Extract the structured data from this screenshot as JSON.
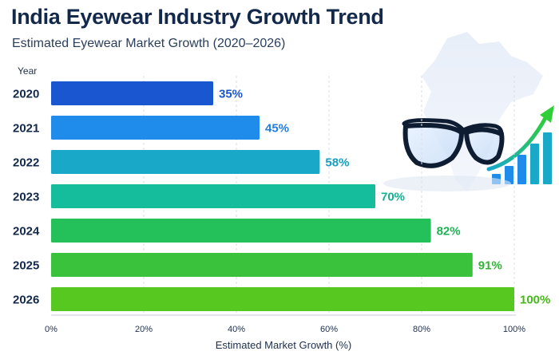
{
  "chart_data": {
    "type": "bar",
    "orientation": "horizontal",
    "title": "India Eyewear Industry Growth Trend",
    "subtitle": "Estimated Eyewear Market Growth (2020–2026)",
    "ylabel": "Year",
    "xlabel": "Estimated Market Growth (%)",
    "categories": [
      "2020",
      "2021",
      "2022",
      "2023",
      "2024",
      "2025",
      "2026"
    ],
    "values": [
      35,
      45,
      58,
      70,
      82,
      91,
      100
    ],
    "data_labels": [
      "35%",
      "45%",
      "58%",
      "70%",
      "82%",
      "91%",
      "100%"
    ],
    "xlim": [
      0,
      100
    ],
    "xticks": [
      0,
      20,
      40,
      60,
      80,
      100
    ],
    "xtick_labels": [
      "0%",
      "20%",
      "40%",
      "60%",
      "80%",
      "100%"
    ],
    "grid": "vertical dashed",
    "colors": [
      "#1a56cf",
      "#1f8bea",
      "#1aa8c8",
      "#16bd9c",
      "#24c15a",
      "#3bc23d",
      "#56c81f"
    ],
    "label_colors": [
      "#1a56cf",
      "#1f7fe0",
      "#179fbf",
      "#14b08f",
      "#1fb153",
      "#32b337",
      "#46b81a"
    ]
  },
  "decoration": {
    "illustration": "india-map-with-eyeglasses-and-growth-arrow"
  }
}
